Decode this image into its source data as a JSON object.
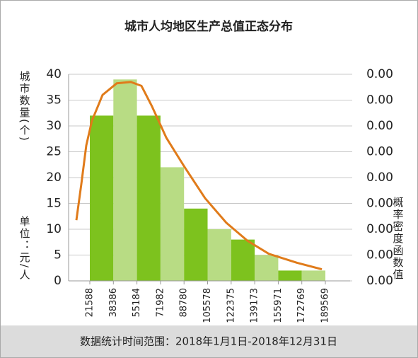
{
  "chart_data": {
    "type": "histogram",
    "title": "城市人均地区生产总值正态分布",
    "y_label": "城市数量(个)",
    "unit_label": "单位：元/人",
    "y2_label": "概率密度函数值",
    "footer": "数据统计时间范围：2018年1月1日-2018年12月31日",
    "bins": [
      21588,
      38386,
      55184,
      71982,
      88780,
      105578,
      122375,
      139173,
      155971,
      172769,
      189569
    ],
    "values": [
      32,
      39,
      32,
      22,
      14,
      10,
      8,
      5,
      2,
      2
    ],
    "colors": [
      "#7dc21e",
      "#b8dc84"
    ],
    "xlim": [
      6456,
      207207
    ],
    "ylim": [
      0,
      40
    ],
    "yticks": [
      0,
      5,
      10,
      15,
      20,
      25,
      30,
      35,
      40
    ],
    "y2lim": [
      0,
      1.6e-05
    ],
    "y2ticks": [
      {
        "value": 0,
        "label": "0.00"
      },
      {
        "value": 2e-06,
        "label": "0.00"
      },
      {
        "value": 4e-06,
        "label": "0.00"
      },
      {
        "value": 6e-06,
        "label": "0.00"
      },
      {
        "value": 8e-06,
        "label": "0.00"
      },
      {
        "value": 1e-05,
        "label": "0.00"
      },
      {
        "value": 1.2e-05,
        "label": "0.00"
      },
      {
        "value": 1.4e-05,
        "label": "0.00"
      },
      {
        "value": 1.6e-05,
        "label": "0.00"
      }
    ],
    "grid": true,
    "curve": {
      "axis": "y2",
      "color": "#e07b1a",
      "x": [
        12004,
        15535,
        19066,
        23101,
        30667,
        40755,
        50843,
        58409,
        65975,
        76063,
        88673,
        103805,
        118937,
        134069,
        149201,
        169377,
        187031
      ],
      "values": [
        4.7e-06,
        7.5e-06,
        1.05e-05,
        1.24e-05,
        1.44e-05,
        1.53e-05,
        1.54e-05,
        1.51e-05,
        1.35e-05,
        1.11e-05,
        8.9e-06,
        6.4e-06,
        4.5e-06,
        3.1e-06,
        2.1e-06,
        1.4e-06,
        9e-07
      ]
    }
  }
}
